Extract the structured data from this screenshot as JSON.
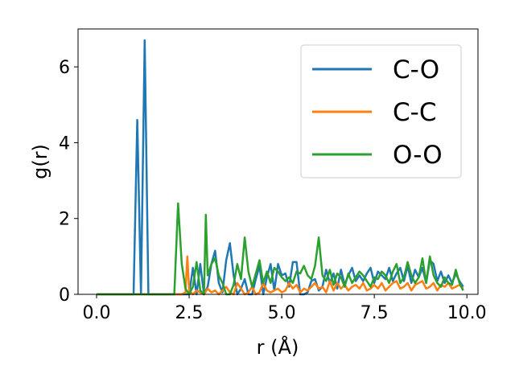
{
  "chart_data": {
    "type": "line",
    "xlabel": "r (Å)",
    "ylabel": "g(r)",
    "xlim": [
      -0.5,
      10.3
    ],
    "ylim": [
      0,
      7
    ],
    "xticks": [
      0.0,
      2.5,
      5.0,
      7.5,
      10.0
    ],
    "xtick_labels": [
      "0.0",
      "2.5",
      "5.0",
      "7.5",
      "10.0"
    ],
    "yticks": [
      0,
      2,
      4,
      6
    ],
    "ytick_labels": [
      "0",
      "2",
      "4",
      "6"
    ],
    "grid": false,
    "legend_position": "top-right",
    "series": [
      {
        "name": "C-O",
        "color": "#1f77b4",
        "points": [
          [
            0,
            0
          ],
          [
            1.0,
            0
          ],
          [
            1.1,
            4.6
          ],
          [
            1.2,
            0
          ],
          [
            1.3,
            6.7
          ],
          [
            1.4,
            0
          ],
          [
            2.3,
            0
          ],
          [
            2.5,
            0
          ],
          [
            2.6,
            0.7
          ],
          [
            2.7,
            0
          ],
          [
            2.8,
            0.8
          ],
          [
            2.9,
            0
          ],
          [
            3.0,
            0.2
          ],
          [
            3.1,
            0.8
          ],
          [
            3.2,
            1.15
          ],
          [
            3.3,
            0.3
          ],
          [
            3.4,
            0.05
          ],
          [
            3.5,
            0.9
          ],
          [
            3.6,
            1.35
          ],
          [
            3.7,
            0.5
          ],
          [
            3.8,
            0
          ],
          [
            3.9,
            0.15
          ],
          [
            4.0,
            0.4
          ],
          [
            4.1,
            0
          ],
          [
            4.2,
            0
          ],
          [
            4.3,
            0.4
          ],
          [
            4.4,
            0.75
          ],
          [
            4.5,
            0
          ],
          [
            4.6,
            0.45
          ],
          [
            4.7,
            0.8
          ],
          [
            4.8,
            0.1
          ],
          [
            4.9,
            0.8
          ],
          [
            5.0,
            0.5
          ],
          [
            5.1,
            0.55
          ],
          [
            5.2,
            0.2
          ],
          [
            5.3,
            0.85
          ],
          [
            5.4,
            0.85
          ],
          [
            5.5,
            0
          ],
          [
            5.6,
            0
          ],
          [
            5.7,
            0.05
          ],
          [
            5.8,
            0.35
          ],
          [
            5.9,
            0.4
          ],
          [
            6.0,
            0.1
          ],
          [
            6.1,
            0.2
          ],
          [
            6.2,
            0.65
          ],
          [
            6.3,
            0.3
          ],
          [
            6.4,
            0.55
          ],
          [
            6.5,
            0.15
          ],
          [
            6.6,
            0.65
          ],
          [
            6.7,
            0.25
          ],
          [
            6.8,
            0.5
          ],
          [
            6.9,
            0.7
          ],
          [
            7.0,
            0.35
          ],
          [
            7.1,
            0.5
          ],
          [
            7.2,
            0.35
          ],
          [
            7.3,
            0.55
          ],
          [
            7.4,
            0.7
          ],
          [
            7.5,
            0.3
          ],
          [
            7.6,
            0.6
          ],
          [
            7.7,
            0.5
          ],
          [
            7.8,
            0.4
          ],
          [
            7.9,
            0.7
          ],
          [
            8.0,
            0.35
          ],
          [
            8.1,
            0.55
          ],
          [
            8.2,
            0.7
          ],
          [
            8.3,
            0.35
          ],
          [
            8.4,
            0.75
          ],
          [
            8.5,
            0.3
          ],
          [
            8.6,
            0.65
          ],
          [
            8.7,
            0.45
          ],
          [
            8.8,
            0.7
          ],
          [
            8.9,
            0.3
          ],
          [
            9.0,
            0.9
          ],
          [
            9.1,
            0.8
          ],
          [
            9.2,
            0.35
          ],
          [
            9.3,
            0.6
          ],
          [
            9.4,
            0.3
          ],
          [
            9.5,
            0.5
          ],
          [
            9.6,
            0.3
          ],
          [
            9.7,
            0.55
          ],
          [
            9.8,
            0.35
          ],
          [
            9.9,
            0.2
          ]
        ]
      },
      {
        "name": "C-C",
        "color": "#ff7f0e",
        "points": [
          [
            0,
            0
          ],
          [
            2.3,
            0
          ],
          [
            2.4,
            0.05
          ],
          [
            2.45,
            1.0
          ],
          [
            2.5,
            0.1
          ],
          [
            2.6,
            0
          ],
          [
            2.7,
            0.1
          ],
          [
            2.8,
            0.05
          ],
          [
            2.9,
            0
          ],
          [
            3.0,
            0.15
          ],
          [
            3.1,
            0.05
          ],
          [
            3.2,
            0.1
          ],
          [
            3.3,
            0
          ],
          [
            3.4,
            0.1
          ],
          [
            3.5,
            0.2
          ],
          [
            3.6,
            0.05
          ],
          [
            3.7,
            0
          ],
          [
            3.8,
            0.3
          ],
          [
            3.9,
            0.15
          ],
          [
            4.0,
            0
          ],
          [
            4.1,
            0.05
          ],
          [
            4.2,
            0.2
          ],
          [
            4.3,
            0
          ],
          [
            4.4,
            0.05
          ],
          [
            4.5,
            0.3
          ],
          [
            4.6,
            0.1
          ],
          [
            4.7,
            0.05
          ],
          [
            4.8,
            0.1
          ],
          [
            4.9,
            0.15
          ],
          [
            5.0,
            0.05
          ],
          [
            5.1,
            0.1
          ],
          [
            5.2,
            0.3
          ],
          [
            5.3,
            0.15
          ],
          [
            5.4,
            0.25
          ],
          [
            5.5,
            0.05
          ],
          [
            5.6,
            0.15
          ],
          [
            5.7,
            0.1
          ],
          [
            5.8,
            0.2
          ],
          [
            5.9,
            0.3
          ],
          [
            6.0,
            0.15
          ],
          [
            6.1,
            0.2
          ],
          [
            6.2,
            0.05
          ],
          [
            6.3,
            0.35
          ],
          [
            6.4,
            0.1
          ],
          [
            6.5,
            0.3
          ],
          [
            6.6,
            0.15
          ],
          [
            6.7,
            0.25
          ],
          [
            6.8,
            0.1
          ],
          [
            6.9,
            0.2
          ],
          [
            7.0,
            0.25
          ],
          [
            7.1,
            0.15
          ],
          [
            7.2,
            0.3
          ],
          [
            7.3,
            0.1
          ],
          [
            7.4,
            0.15
          ],
          [
            7.5,
            0.25
          ],
          [
            7.6,
            0.15
          ],
          [
            7.7,
            0.3
          ],
          [
            7.8,
            0.1
          ],
          [
            7.9,
            0.2
          ],
          [
            8.0,
            0.3
          ],
          [
            8.1,
            0.35
          ],
          [
            8.2,
            0.15
          ],
          [
            8.3,
            0.2
          ],
          [
            8.4,
            0.3
          ],
          [
            8.5,
            0.1
          ],
          [
            8.6,
            0.25
          ],
          [
            8.7,
            0.3
          ],
          [
            8.8,
            0.35
          ],
          [
            8.9,
            0.15
          ],
          [
            9.0,
            0.2
          ],
          [
            9.1,
            0.3
          ],
          [
            9.2,
            0.1
          ],
          [
            9.3,
            0.25
          ],
          [
            9.4,
            0.2
          ],
          [
            9.5,
            0.3
          ],
          [
            9.6,
            0.15
          ],
          [
            9.7,
            0.2
          ],
          [
            9.8,
            0.25
          ],
          [
            9.9,
            0.15
          ]
        ]
      },
      {
        "name": "O-O",
        "color": "#2ca02c",
        "points": [
          [
            0,
            0
          ],
          [
            2.1,
            0
          ],
          [
            2.2,
            2.4
          ],
          [
            2.3,
            0.8
          ],
          [
            2.4,
            0.15
          ],
          [
            2.5,
            0
          ],
          [
            2.6,
            0.2
          ],
          [
            2.7,
            0.85
          ],
          [
            2.8,
            0.1
          ],
          [
            2.9,
            0
          ],
          [
            2.95,
            2.1
          ],
          [
            3.0,
            0.5
          ],
          [
            3.1,
            0.8
          ],
          [
            3.2,
            0.95
          ],
          [
            3.3,
            0.5
          ],
          [
            3.4,
            0.3
          ],
          [
            3.5,
            0
          ],
          [
            3.6,
            0
          ],
          [
            3.7,
            0.25
          ],
          [
            3.8,
            0.8
          ],
          [
            3.9,
            0.4
          ],
          [
            4.0,
            1.5
          ],
          [
            4.1,
            0.6
          ],
          [
            4.2,
            0.2
          ],
          [
            4.3,
            0.55
          ],
          [
            4.4,
            0.9
          ],
          [
            4.5,
            0.3
          ],
          [
            4.6,
            0.6
          ],
          [
            4.7,
            0.3
          ],
          [
            4.8,
            0.7
          ],
          [
            4.9,
            0.6
          ],
          [
            5.0,
            0.45
          ],
          [
            5.1,
            0.35
          ],
          [
            5.2,
            0.45
          ],
          [
            5.3,
            0.3
          ],
          [
            5.4,
            0.6
          ],
          [
            5.5,
            0.55
          ],
          [
            5.6,
            0.75
          ],
          [
            5.7,
            0.5
          ],
          [
            5.8,
            0.4
          ],
          [
            5.9,
            0.75
          ],
          [
            6.0,
            1.5
          ],
          [
            6.1,
            0.5
          ],
          [
            6.2,
            0.35
          ],
          [
            6.3,
            0.65
          ],
          [
            6.4,
            0.25
          ],
          [
            6.5,
            0.55
          ],
          [
            6.6,
            0.45
          ],
          [
            6.7,
            0.2
          ],
          [
            6.8,
            0.55
          ],
          [
            6.9,
            0.3
          ],
          [
            7.0,
            0.45
          ],
          [
            7.1,
            0.6
          ],
          [
            7.2,
            0.5
          ],
          [
            7.3,
            0.35
          ],
          [
            7.4,
            0.2
          ],
          [
            7.5,
            0.45
          ],
          [
            7.6,
            0.4
          ],
          [
            7.7,
            0.6
          ],
          [
            7.8,
            0.5
          ],
          [
            7.9,
            0.3
          ],
          [
            8.0,
            0.6
          ],
          [
            8.1,
            0.8
          ],
          [
            8.2,
            0.3
          ],
          [
            8.3,
            0.45
          ],
          [
            8.4,
            0.85
          ],
          [
            8.5,
            0.5
          ],
          [
            8.6,
            0.3
          ],
          [
            8.7,
            0.45
          ],
          [
            8.8,
            0.95
          ],
          [
            8.9,
            0.3
          ],
          [
            9.0,
            1.0
          ],
          [
            9.1,
            0.5
          ],
          [
            9.2,
            0.3
          ],
          [
            9.3,
            0.2
          ],
          [
            9.4,
            0.45
          ],
          [
            9.5,
            0.3
          ],
          [
            9.6,
            0.25
          ],
          [
            9.7,
            0.65
          ],
          [
            9.8,
            0.3
          ],
          [
            9.9,
            0.1
          ]
        ]
      }
    ]
  }
}
